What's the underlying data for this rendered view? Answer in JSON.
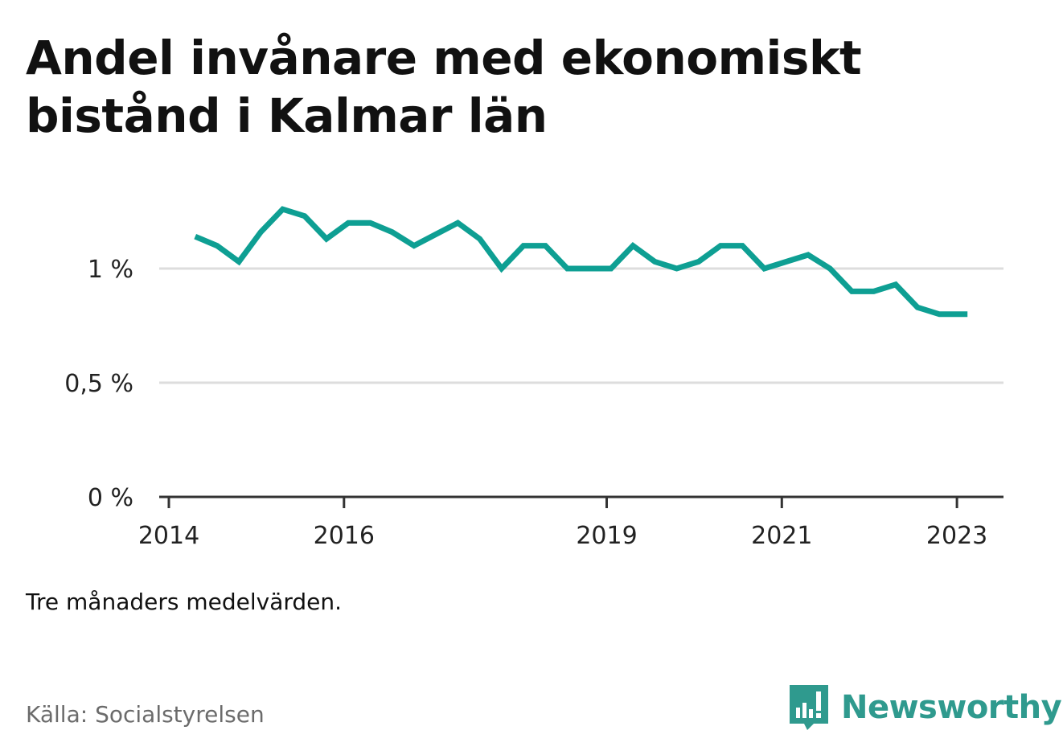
{
  "title": "Andel invånare med ekonomiskt bistånd i Kalmar län",
  "note": "Tre månaders medelvärden.",
  "source": "Källa: Socialstyrelsen",
  "logo": {
    "text": "Newsworthy",
    "icon": "bar-chart-speech-bubble-icon",
    "color": "#2f9a8e"
  },
  "colors": {
    "line": "#0e9f93",
    "grid": "#dddddd",
    "axis": "#333333"
  },
  "chart_data": {
    "type": "line",
    "title": "Andel invånare med ekonomiskt bistånd i Kalmar län",
    "xlabel": "",
    "ylabel": "",
    "x_tick_labels": [
      "2014",
      "2016",
      "2019",
      "2021",
      "2023"
    ],
    "x_ticks": [
      2014,
      2016,
      2019,
      2021,
      2023
    ],
    "y_tick_labels": [
      "0 %",
      "0,5 %",
      "1 %"
    ],
    "y_ticks": [
      0,
      0.5,
      1.0
    ],
    "xlim": [
      2013.9,
      2023.55
    ],
    "ylim": [
      0,
      1.3
    ],
    "grid": true,
    "series": [
      {
        "x": [
          2014.3,
          2014.55,
          2014.8,
          2015.05,
          2015.3,
          2015.55,
          2015.8,
          2016.05,
          2016.3,
          2016.55,
          2016.8,
          2017.05,
          2017.3,
          2017.55,
          2017.8,
          2018.05,
          2018.3,
          2018.55,
          2018.8,
          2019.05,
          2019.3,
          2019.55,
          2019.8,
          2020.05,
          2020.3,
          2020.55,
          2020.8,
          2021.05,
          2021.3,
          2021.55,
          2021.8,
          2022.05,
          2022.3,
          2022.55,
          2022.8,
          2023.05,
          2023.12
        ],
        "values": [
          1.14,
          1.1,
          1.03,
          1.16,
          1.26,
          1.23,
          1.13,
          1.2,
          1.2,
          1.16,
          1.1,
          1.15,
          1.2,
          1.13,
          1.0,
          1.1,
          1.1,
          1.0,
          1.0,
          1.0,
          1.1,
          1.03,
          1.0,
          1.03,
          1.1,
          1.1,
          1.0,
          1.03,
          1.06,
          1.0,
          0.9,
          0.9,
          0.93,
          0.83,
          0.8,
          0.8,
          0.8
        ]
      }
    ]
  }
}
